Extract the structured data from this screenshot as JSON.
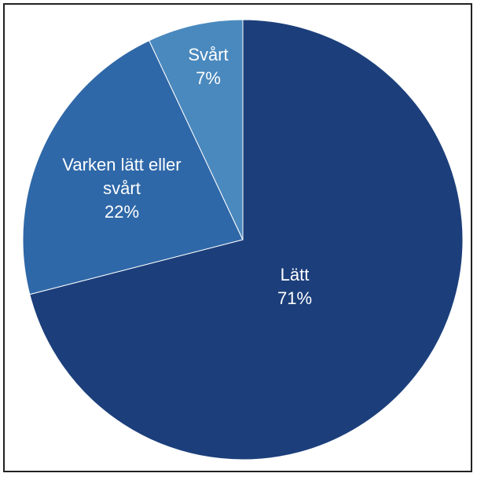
{
  "chart_data": {
    "type": "pie",
    "categories": [
      "Lätt",
      "Varken lätt eller svårt",
      "Svårt"
    ],
    "values": [
      71,
      22,
      7
    ],
    "value_labels": [
      "71%",
      "22%",
      "7%"
    ],
    "colors": [
      "#1c3f7b",
      "#2f68a8",
      "#4a89be"
    ]
  }
}
